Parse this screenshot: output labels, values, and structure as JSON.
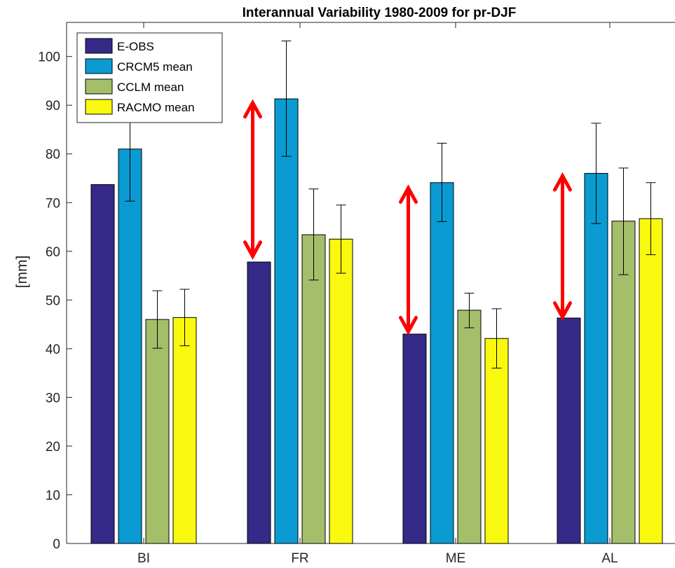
{
  "chart_data": {
    "type": "bar",
    "title": "Interannual Variability 1980-2009 for pr-DJF",
    "xlabel": "",
    "ylabel": "[mm]",
    "categories": [
      "BI",
      "FR",
      "ME",
      "AL"
    ],
    "ylim": [
      0,
      107
    ],
    "yticks": [
      0,
      10,
      20,
      30,
      40,
      50,
      60,
      70,
      80,
      90,
      100
    ],
    "grid": false,
    "legend_position": "top-left",
    "series": [
      {
        "name": "E-OBS",
        "color": "#352A87",
        "values": [
          73.7,
          57.8,
          43.0,
          46.3
        ],
        "err_low": null,
        "err_high": null
      },
      {
        "name": "CRCM5 mean",
        "color": "#0A9BD2",
        "values": [
          81.0,
          91.3,
          74.1,
          76.0
        ],
        "err_low": [
          70.3,
          79.5,
          66.1,
          65.7
        ],
        "err_high": [
          91.8,
          103.2,
          82.2,
          86.3
        ]
      },
      {
        "name": "CCLM mean",
        "color": "#A5BE6A",
        "values": [
          46.0,
          63.4,
          47.9,
          66.2
        ],
        "err_low": [
          40.1,
          54.1,
          44.3,
          55.2
        ],
        "err_high": [
          51.9,
          72.8,
          51.4,
          77.1
        ]
      },
      {
        "name": "RACMO mean",
        "color": "#F9F80F",
        "values": [
          46.4,
          62.5,
          42.1,
          66.7
        ],
        "err_low": [
          40.6,
          55.5,
          36.0,
          59.3
        ],
        "err_high": [
          52.2,
          69.5,
          48.2,
          74.1
        ]
      }
    ],
    "annotations": [
      {
        "category": "FR",
        "type": "double-arrow",
        "from": 59.0,
        "to": 90.5,
        "color": "#FF0000"
      },
      {
        "category": "ME",
        "type": "double-arrow",
        "from": 43.5,
        "to": 73.0,
        "color": "#FF0000"
      },
      {
        "category": "AL",
        "type": "double-arrow",
        "from": 46.5,
        "to": 75.5,
        "color": "#FF0000"
      }
    ]
  }
}
